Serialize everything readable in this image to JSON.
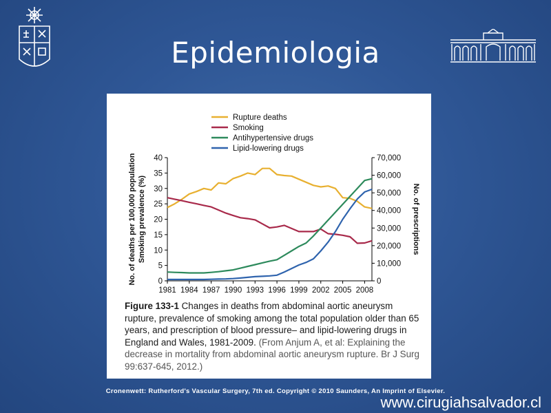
{
  "slide": {
    "title": "Epidemiologia",
    "credit": "Cronenwett: Rutherford's Vascular Surgery, 7th ed. Copyright © 2010 Saunders, An Imprint of Elsevier.",
    "website": "www.cirugiahsalvador.cl"
  },
  "caption": {
    "figure_label": "Figure 133-1",
    "text": "   Changes in deaths from abdominal aortic aneurysm rupture, prevalence of smoking among the total population older than 65 years, and prescription of blood pressure– and lipid-lowering drugs in England and Wales, 1981-2009. ",
    "source": "(From Anjum A, et al: Explaining the decrease in mortality from abdominal aortic aneurysm rupture. Br J Surg 99:637-645, 2012.)"
  },
  "chart_data": {
    "type": "line",
    "title": "",
    "xlabel": "",
    "ylabel_left": [
      "No. of deaths per 100,000 population",
      "Smoking prevalence (%)"
    ],
    "ylabel_right": "No. of prescriptions",
    "x_ticks": [
      "1981",
      "1984",
      "1987",
      "1990",
      "1993",
      "1996",
      "1999",
      "2002",
      "2005",
      "2008"
    ],
    "xlim": [
      1981,
      2009
    ],
    "ylim_left": [
      0,
      40
    ],
    "ylim_right": [
      0,
      70000
    ],
    "y_ticks_left": [
      "0",
      "5",
      "10",
      "15",
      "20",
      "25",
      "30",
      "35",
      "40"
    ],
    "y_ticks_right": [
      "0",
      "10,000",
      "20,000",
      "30,000",
      "40,000",
      "50,000",
      "60,000",
      "70,000"
    ],
    "legend_position": "top",
    "series": [
      {
        "name": "Rupture deaths",
        "color": "#e8b030",
        "axis": "left",
        "x": [
          1981,
          1982,
          1983,
          1984,
          1985,
          1986,
          1987,
          1988,
          1989,
          1990,
          1991,
          1992,
          1993,
          1994,
          1995,
          1996,
          1997,
          1998,
          1999,
          2000,
          2001,
          2002,
          2003,
          2004,
          2005,
          2006,
          2007,
          2008,
          2009
        ],
        "y": [
          23.8,
          25,
          26.5,
          28.2,
          29,
          30,
          29.5,
          31.8,
          31.5,
          33.2,
          34,
          35,
          34.5,
          36.5,
          36.5,
          34.5,
          34.2,
          34,
          33,
          32,
          31,
          30.5,
          30.8,
          30,
          27,
          26.8,
          25.8,
          24,
          23.5
        ]
      },
      {
        "name": "Smoking",
        "color": "#a8294a",
        "axis": "left",
        "x": [
          1981,
          1982,
          1983,
          1984,
          1985,
          1986,
          1987,
          1988,
          1989,
          1990,
          1991,
          1992,
          1993,
          1994,
          1995,
          1996,
          1997,
          1998,
          1999,
          2000,
          2001,
          2002,
          2003,
          2004,
          2005,
          2006,
          2007,
          2008,
          2009
        ],
        "y": [
          27,
          26.5,
          26,
          25.5,
          25,
          24.5,
          24,
          23,
          22,
          21.2,
          20.5,
          20.2,
          19.8,
          18.5,
          17.2,
          17.5,
          18,
          17,
          16,
          16,
          16,
          16.8,
          15.3,
          15.1,
          14.8,
          14.3,
          12.2,
          12.3,
          13
        ]
      },
      {
        "name": "Antihypertensive drugs",
        "color": "#2d8a5c",
        "axis": "right",
        "x": [
          1981,
          1982,
          1983,
          1984,
          1985,
          1986,
          1987,
          1988,
          1989,
          1990,
          1991,
          1992,
          1993,
          1994,
          1995,
          1996,
          1997,
          1998,
          1999,
          2000,
          2001,
          2002,
          2003,
          2004,
          2005,
          2006,
          2007,
          2008,
          2009
        ],
        "y": [
          5000,
          4800,
          4700,
          4500,
          4500,
          4500,
          4800,
          5200,
          5700,
          6200,
          7200,
          8200,
          9200,
          10200,
          11200,
          12000,
          14500,
          17000,
          19500,
          21500,
          25500,
          30000,
          34500,
          39000,
          43500,
          48000,
          52500,
          57000,
          58000
        ]
      },
      {
        "name": "Lipid-lowering drugs",
        "color": "#2e63ad",
        "axis": "right",
        "x": [
          1981,
          1982,
          1983,
          1984,
          1985,
          1986,
          1987,
          1988,
          1989,
          1990,
          1991,
          1992,
          1993,
          1994,
          1995,
          1996,
          1997,
          1998,
          1999,
          2000,
          2001,
          2002,
          2003,
          2004,
          2005,
          2006,
          2007,
          2008,
          2009
        ],
        "y": [
          800,
          800,
          800,
          800,
          800,
          800,
          900,
          1000,
          1100,
          1300,
          1600,
          2000,
          2400,
          2600,
          2800,
          3200,
          5000,
          7000,
          9000,
          10500,
          12500,
          17000,
          22000,
          28000,
          35000,
          41000,
          46500,
          50500,
          52000
        ]
      }
    ]
  }
}
